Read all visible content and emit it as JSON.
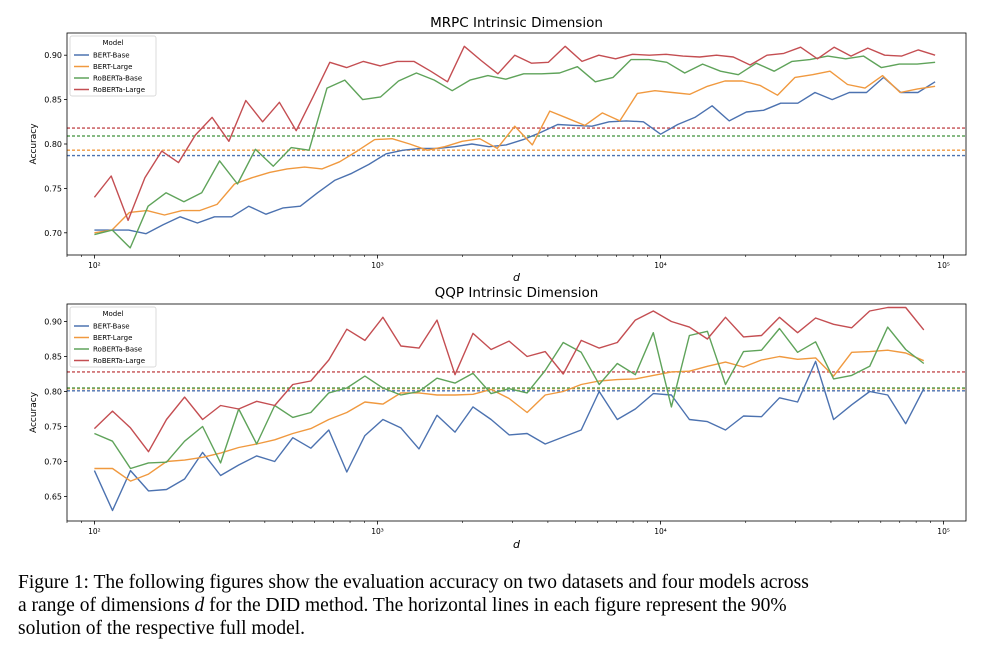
{
  "chart_data": [
    {
      "type": "line",
      "title": "MRPC Intrinsic Dimension",
      "xlabel": "d",
      "ylabel": "Accuracy",
      "xscale": "log",
      "xlim": [
        80,
        120000
      ],
      "ylim": [
        0.675,
        0.925
      ],
      "yticks": [
        0.7,
        0.75,
        0.8,
        0.85,
        0.9
      ],
      "ytick_labels": [
        "0.70",
        "0.75",
        "0.80",
        "0.85",
        "0.90"
      ],
      "xticks": [
        100,
        1000,
        10000,
        100000
      ],
      "xtick_labels": [
        "10²",
        "10³",
        "10⁴",
        "10⁵"
      ],
      "legend": {
        "title": "Model",
        "position": "top-left"
      },
      "series": [
        {
          "name": "BERT-Base",
          "color": "#4c72b0",
          "threshold": 0.787,
          "values": [
            0.703,
            0.703,
            0.703,
            0.699,
            0.709,
            0.718,
            0.711,
            0.718,
            0.718,
            0.73,
            0.721,
            0.728,
            0.73,
            0.745,
            0.759,
            0.767,
            0.777,
            0.789,
            0.793,
            0.795,
            0.795,
            0.797,
            0.8,
            0.797,
            0.799,
            0.805,
            0.813,
            0.822,
            0.821,
            0.82,
            0.825,
            0.826,
            0.825,
            0.811,
            0.822,
            0.83,
            0.843,
            0.826,
            0.836,
            0.838,
            0.846,
            0.846,
            0.858,
            0.85,
            0.858,
            0.858,
            0.875,
            0.858,
            0.858,
            0.87
          ]
        },
        {
          "name": "BERT-Large",
          "color": "#f0993f",
          "threshold": 0.793,
          "values": [
            0.7,
            0.703,
            0.723,
            0.725,
            0.72,
            0.725,
            0.725,
            0.732,
            0.755,
            0.762,
            0.768,
            0.772,
            0.774,
            0.772,
            0.78,
            0.792,
            0.805,
            0.806,
            0.8,
            0.793,
            0.797,
            0.803,
            0.806,
            0.795,
            0.82,
            0.799,
            0.837,
            0.829,
            0.821,
            0.835,
            0.826,
            0.857,
            0.86,
            0.858,
            0.856,
            0.865,
            0.871,
            0.871,
            0.866,
            0.855,
            0.875,
            0.878,
            0.882,
            0.867,
            0.863,
            0.877,
            0.858,
            0.862,
            0.865
          ]
        },
        {
          "name": "RoBERTa-Base",
          "color": "#5fa35a",
          "threshold": 0.809,
          "values": [
            0.698,
            0.703,
            0.683,
            0.73,
            0.745,
            0.735,
            0.745,
            0.781,
            0.755,
            0.794,
            0.775,
            0.796,
            0.793,
            0.863,
            0.872,
            0.85,
            0.853,
            0.871,
            0.88,
            0.872,
            0.86,
            0.872,
            0.877,
            0.873,
            0.879,
            0.879,
            0.88,
            0.887,
            0.87,
            0.875,
            0.895,
            0.895,
            0.892,
            0.88,
            0.89,
            0.882,
            0.878,
            0.891,
            0.882,
            0.893,
            0.895,
            0.899,
            0.896,
            0.899,
            0.886,
            0.89,
            0.89,
            0.892
          ]
        },
        {
          "name": "RoBERTa-Large",
          "color": "#c44e52",
          "threshold": 0.818,
          "values": [
            0.74,
            0.764,
            0.714,
            0.762,
            0.792,
            0.779,
            0.81,
            0.83,
            0.803,
            0.849,
            0.825,
            0.847,
            0.815,
            0.853,
            0.892,
            0.886,
            0.893,
            0.888,
            0.893,
            0.893,
            0.882,
            0.87,
            0.91,
            0.894,
            0.879,
            0.9,
            0.891,
            0.892,
            0.91,
            0.893,
            0.9,
            0.896,
            0.901,
            0.9,
            0.901,
            0.899,
            0.898,
            0.9,
            0.898,
            0.889,
            0.9,
            0.902,
            0.909,
            0.896,
            0.909,
            0.899,
            0.908,
            0.9,
            0.899,
            0.906,
            0.9
          ]
        }
      ]
    },
    {
      "type": "line",
      "title": "QQP Intrinsic Dimension",
      "xlabel": "d",
      "ylabel": "Accuracy",
      "xscale": "log",
      "xlim": [
        80,
        120000
      ],
      "ylim": [
        0.615,
        0.925
      ],
      "yticks": [
        0.65,
        0.7,
        0.75,
        0.8,
        0.85,
        0.9
      ],
      "ytick_labels": [
        "0.65",
        "0.70",
        "0.75",
        "0.80",
        "0.85",
        "0.90"
      ],
      "xticks": [
        100,
        1000,
        10000,
        100000
      ],
      "xtick_labels": [
        "10²",
        "10³",
        "10⁴",
        "10⁵"
      ],
      "legend": {
        "title": "Model",
        "position": "top-left"
      },
      "series": [
        {
          "name": "BERT-Base",
          "color": "#4c72b0",
          "threshold": 0.801,
          "values": [
            0.687,
            0.63,
            0.687,
            0.658,
            0.66,
            0.675,
            0.713,
            0.68,
            0.695,
            0.708,
            0.7,
            0.734,
            0.719,
            0.745,
            0.685,
            0.737,
            0.76,
            0.748,
            0.718,
            0.766,
            0.742,
            0.778,
            0.76,
            0.738,
            0.74,
            0.725,
            0.735,
            0.745,
            0.8,
            0.76,
            0.775,
            0.797,
            0.795,
            0.76,
            0.757,
            0.745,
            0.765,
            0.764,
            0.791,
            0.785,
            0.843,
            0.76,
            0.781,
            0.8,
            0.795,
            0.754,
            0.804
          ]
        },
        {
          "name": "BERT-Large",
          "color": "#f0993f",
          "threshold": 0.804,
          "values": [
            0.69,
            0.69,
            0.672,
            0.682,
            0.7,
            0.702,
            0.706,
            0.712,
            0.72,
            0.725,
            0.731,
            0.74,
            0.747,
            0.76,
            0.77,
            0.785,
            0.782,
            0.798,
            0.798,
            0.795,
            0.795,
            0.796,
            0.803,
            0.79,
            0.77,
            0.795,
            0.8,
            0.81,
            0.815,
            0.817,
            0.818,
            0.823,
            0.828,
            0.829,
            0.836,
            0.842,
            0.835,
            0.845,
            0.85,
            0.846,
            0.848,
            0.822,
            0.856,
            0.857,
            0.859,
            0.855,
            0.844
          ]
        },
        {
          "name": "RoBERTa-Base",
          "color": "#5fa35a",
          "threshold": 0.805,
          "values": [
            0.74,
            0.729,
            0.69,
            0.698,
            0.699,
            0.729,
            0.75,
            0.698,
            0.775,
            0.725,
            0.78,
            0.763,
            0.77,
            0.798,
            0.805,
            0.822,
            0.805,
            0.795,
            0.8,
            0.819,
            0.812,
            0.826,
            0.797,
            0.804,
            0.798,
            0.83,
            0.87,
            0.856,
            0.81,
            0.84,
            0.824,
            0.884,
            0.778,
            0.88,
            0.886,
            0.81,
            0.857,
            0.859,
            0.89,
            0.856,
            0.871,
            0.818,
            0.823,
            0.836,
            0.892,
            0.86,
            0.84
          ]
        },
        {
          "name": "RoBERTa-Large",
          "color": "#c44e52",
          "threshold": 0.828,
          "values": [
            0.747,
            0.772,
            0.748,
            0.714,
            0.76,
            0.792,
            0.76,
            0.78,
            0.775,
            0.786,
            0.78,
            0.81,
            0.815,
            0.845,
            0.889,
            0.873,
            0.906,
            0.865,
            0.862,
            0.902,
            0.824,
            0.883,
            0.86,
            0.872,
            0.85,
            0.857,
            0.825,
            0.873,
            0.862,
            0.87,
            0.902,
            0.915,
            0.9,
            0.892,
            0.875,
            0.906,
            0.878,
            0.88,
            0.906,
            0.884,
            0.905,
            0.896,
            0.891,
            0.915,
            0.92,
            0.92,
            0.888
          ]
        }
      ]
    }
  ],
  "caption": {
    "part1": "Figure 1: The following figures show the evaluation accuracy on two datasets and four models across",
    "part2a": "a range of dimensions ",
    "var": "d",
    "part2b": " for the DID method. The horizontal lines in each figure represent the 90%",
    "part3": "solution of the respective full model."
  }
}
